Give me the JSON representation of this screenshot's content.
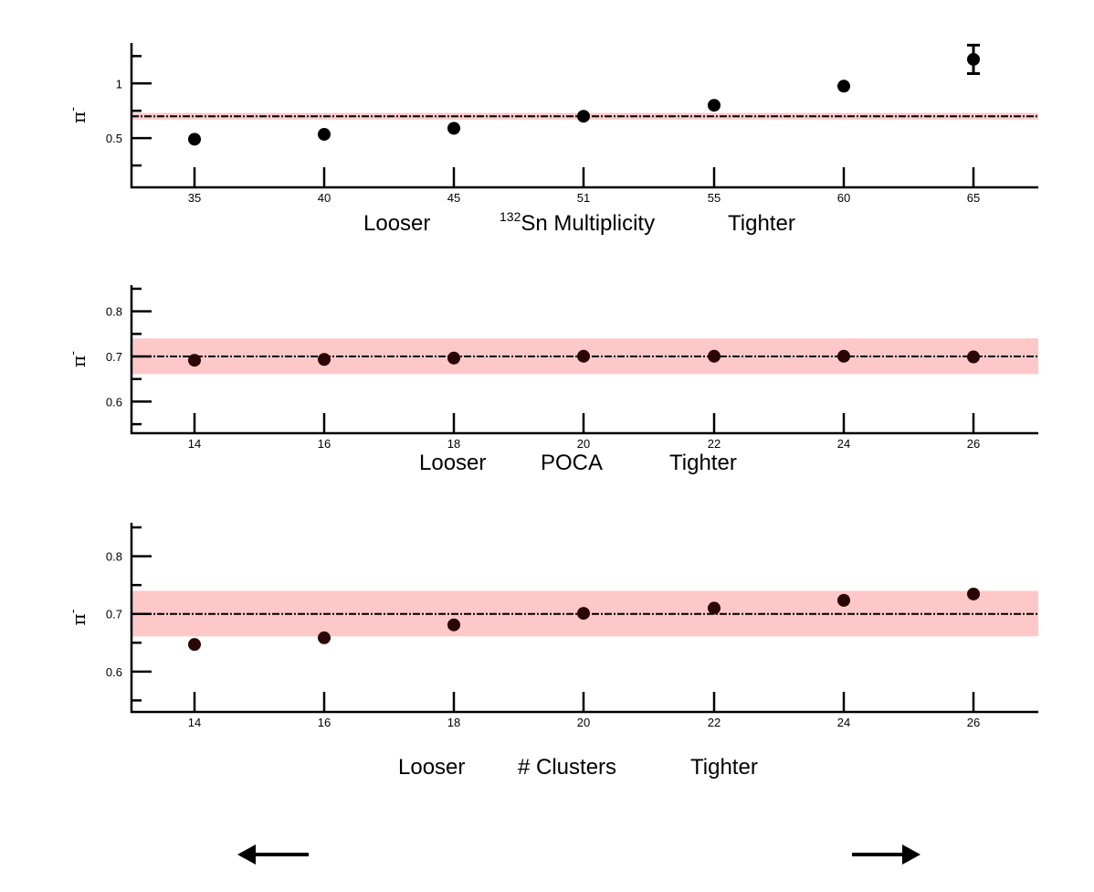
{
  "chart_data": [
    {
      "type": "scatter",
      "ylabel": "π",
      "ylabel_sup": "-",
      "xlabel_parts": [
        "Looser",
        "¹³²Sn Multiplicity",
        "Tighter"
      ],
      "xlabel_left": "Looser",
      "xlabel_sup": "132",
      "xlabel_center": "Sn Multiplicity",
      "xlabel_right": "Tighter",
      "categories": [
        "35",
        "40",
        "45",
        "51",
        "55",
        "60",
        "65"
      ],
      "values": [
        0.49,
        0.535,
        0.59,
        0.7,
        0.8,
        0.975,
        1.22
      ],
      "errors": [
        0,
        0,
        0,
        0,
        0,
        0,
        0.24
      ],
      "ylim": [
        0.05,
        1.37
      ],
      "yticks": [
        0.5,
        1
      ],
      "ytick_labels": [
        "0.5",
        "1"
      ],
      "reference": 0.7,
      "band": [
        0.67,
        0.73
      ],
      "band_color": "#ffc8c8",
      "point_color": "#000000",
      "grid": false
    },
    {
      "type": "scatter",
      "ylabel": "π",
      "ylabel_sup": "-",
      "xlabel_parts": [
        "Looser",
        "POCA",
        "Tighter"
      ],
      "xlabel_left": "Looser",
      "xlabel_center": "POCA",
      "xlabel_right": "Tighter",
      "categories": [
        "14",
        "16",
        "18",
        "20",
        "22",
        "24",
        "26"
      ],
      "values": [
        0.6915,
        0.6935,
        0.6965,
        0.7005,
        0.7005,
        0.7005,
        0.699
      ],
      "ylim": [
        0.53,
        0.858
      ],
      "yticks": [
        0.6,
        0.7,
        0.8
      ],
      "ytick_labels": [
        "0.6",
        "0.7",
        "0.8"
      ],
      "reference": 0.7,
      "band": [
        0.661,
        0.74
      ],
      "band_color": "#ffc8c8",
      "point_color": "#2a0606",
      "grid": false
    },
    {
      "type": "scatter",
      "ylabel": "π",
      "ylabel_sup": "-",
      "xlabel_parts": [
        "Looser",
        "# Clusters",
        "Tighter"
      ],
      "xlabel_left": "Looser",
      "xlabel_center": "# Clusters",
      "xlabel_right": "Tighter",
      "categories": [
        "14",
        "16",
        "18",
        "20",
        "22",
        "24",
        "26"
      ],
      "values": [
        0.647,
        0.6585,
        0.681,
        0.701,
        0.71,
        0.7235,
        0.7345
      ],
      "ylim": [
        0.53,
        0.858
      ],
      "yticks": [
        0.6,
        0.7,
        0.8
      ],
      "ytick_labels": [
        "0.6",
        "0.7",
        "0.8"
      ],
      "reference": 0.7,
      "band": [
        0.661,
        0.74
      ],
      "band_color": "#ffc8c8",
      "point_color": "#2a0606",
      "grid": false
    }
  ],
  "arrows": {
    "left": "left-arrow-icon",
    "right": "right-arrow-icon"
  }
}
